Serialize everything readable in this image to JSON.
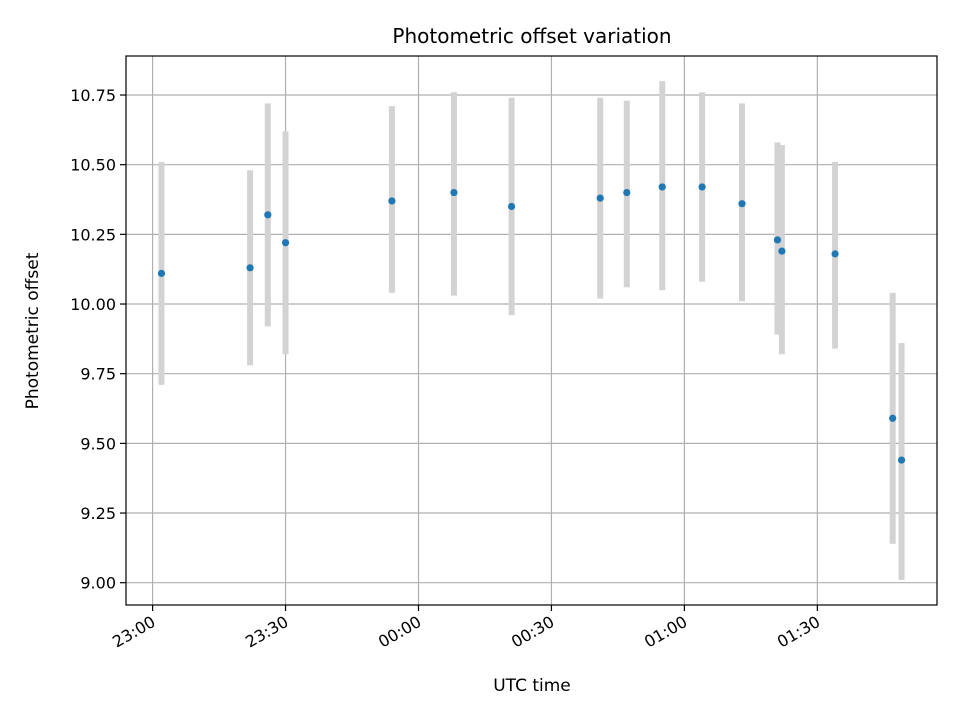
{
  "chart_data": {
    "type": "scatter",
    "title": "Photometric offset variation",
    "xlabel": "UTC time",
    "ylabel": "Photometric offset",
    "x_axis_kind": "time",
    "x_ticks": [
      "23:00",
      "23:30",
      "00:00",
      "00:30",
      "01:00",
      "01:30"
    ],
    "y_ticks": [
      "9.00",
      "9.25",
      "9.50",
      "9.75",
      "10.00",
      "10.25",
      "10.50",
      "10.75"
    ],
    "xlim": [
      "22:54",
      "01:57"
    ],
    "ylim": [
      8.92,
      10.89
    ],
    "grid": true,
    "colors": {
      "point": "#1f77b4",
      "errorbar": "#d3d3d3",
      "grid": "#b0b0b0"
    },
    "points": [
      {
        "time": "23:02",
        "y": 10.11,
        "ylo": 9.71,
        "yhi": 10.51
      },
      {
        "time": "23:22",
        "y": 10.13,
        "ylo": 9.78,
        "yhi": 10.48
      },
      {
        "time": "23:26",
        "y": 10.32,
        "ylo": 9.92,
        "yhi": 10.72
      },
      {
        "time": "23:30",
        "y": 10.22,
        "ylo": 9.82,
        "yhi": 10.62
      },
      {
        "time": "23:54",
        "y": 10.37,
        "ylo": 10.04,
        "yhi": 10.71
      },
      {
        "time": "00:08",
        "y": 10.4,
        "ylo": 10.03,
        "yhi": 10.76
      },
      {
        "time": "00:21",
        "y": 10.35,
        "ylo": 9.96,
        "yhi": 10.74
      },
      {
        "time": "00:41",
        "y": 10.38,
        "ylo": 10.02,
        "yhi": 10.74
      },
      {
        "time": "00:47",
        "y": 10.4,
        "ylo": 10.06,
        "yhi": 10.73
      },
      {
        "time": "00:55",
        "y": 10.42,
        "ylo": 10.05,
        "yhi": 10.8
      },
      {
        "time": "01:04",
        "y": 10.42,
        "ylo": 10.08,
        "yhi": 10.76
      },
      {
        "time": "01:13",
        "y": 10.36,
        "ylo": 10.01,
        "yhi": 10.72
      },
      {
        "time": "01:21",
        "y": 10.23,
        "ylo": 9.89,
        "yhi": 10.58
      },
      {
        "time": "01:22",
        "y": 10.19,
        "ylo": 9.82,
        "yhi": 10.57
      },
      {
        "time": "01:34",
        "y": 10.18,
        "ylo": 9.84,
        "yhi": 10.51
      },
      {
        "time": "01:47",
        "y": 9.59,
        "ylo": 9.14,
        "yhi": 10.04
      },
      {
        "time": "01:49",
        "y": 9.44,
        "ylo": 9.01,
        "yhi": 9.86
      }
    ]
  }
}
